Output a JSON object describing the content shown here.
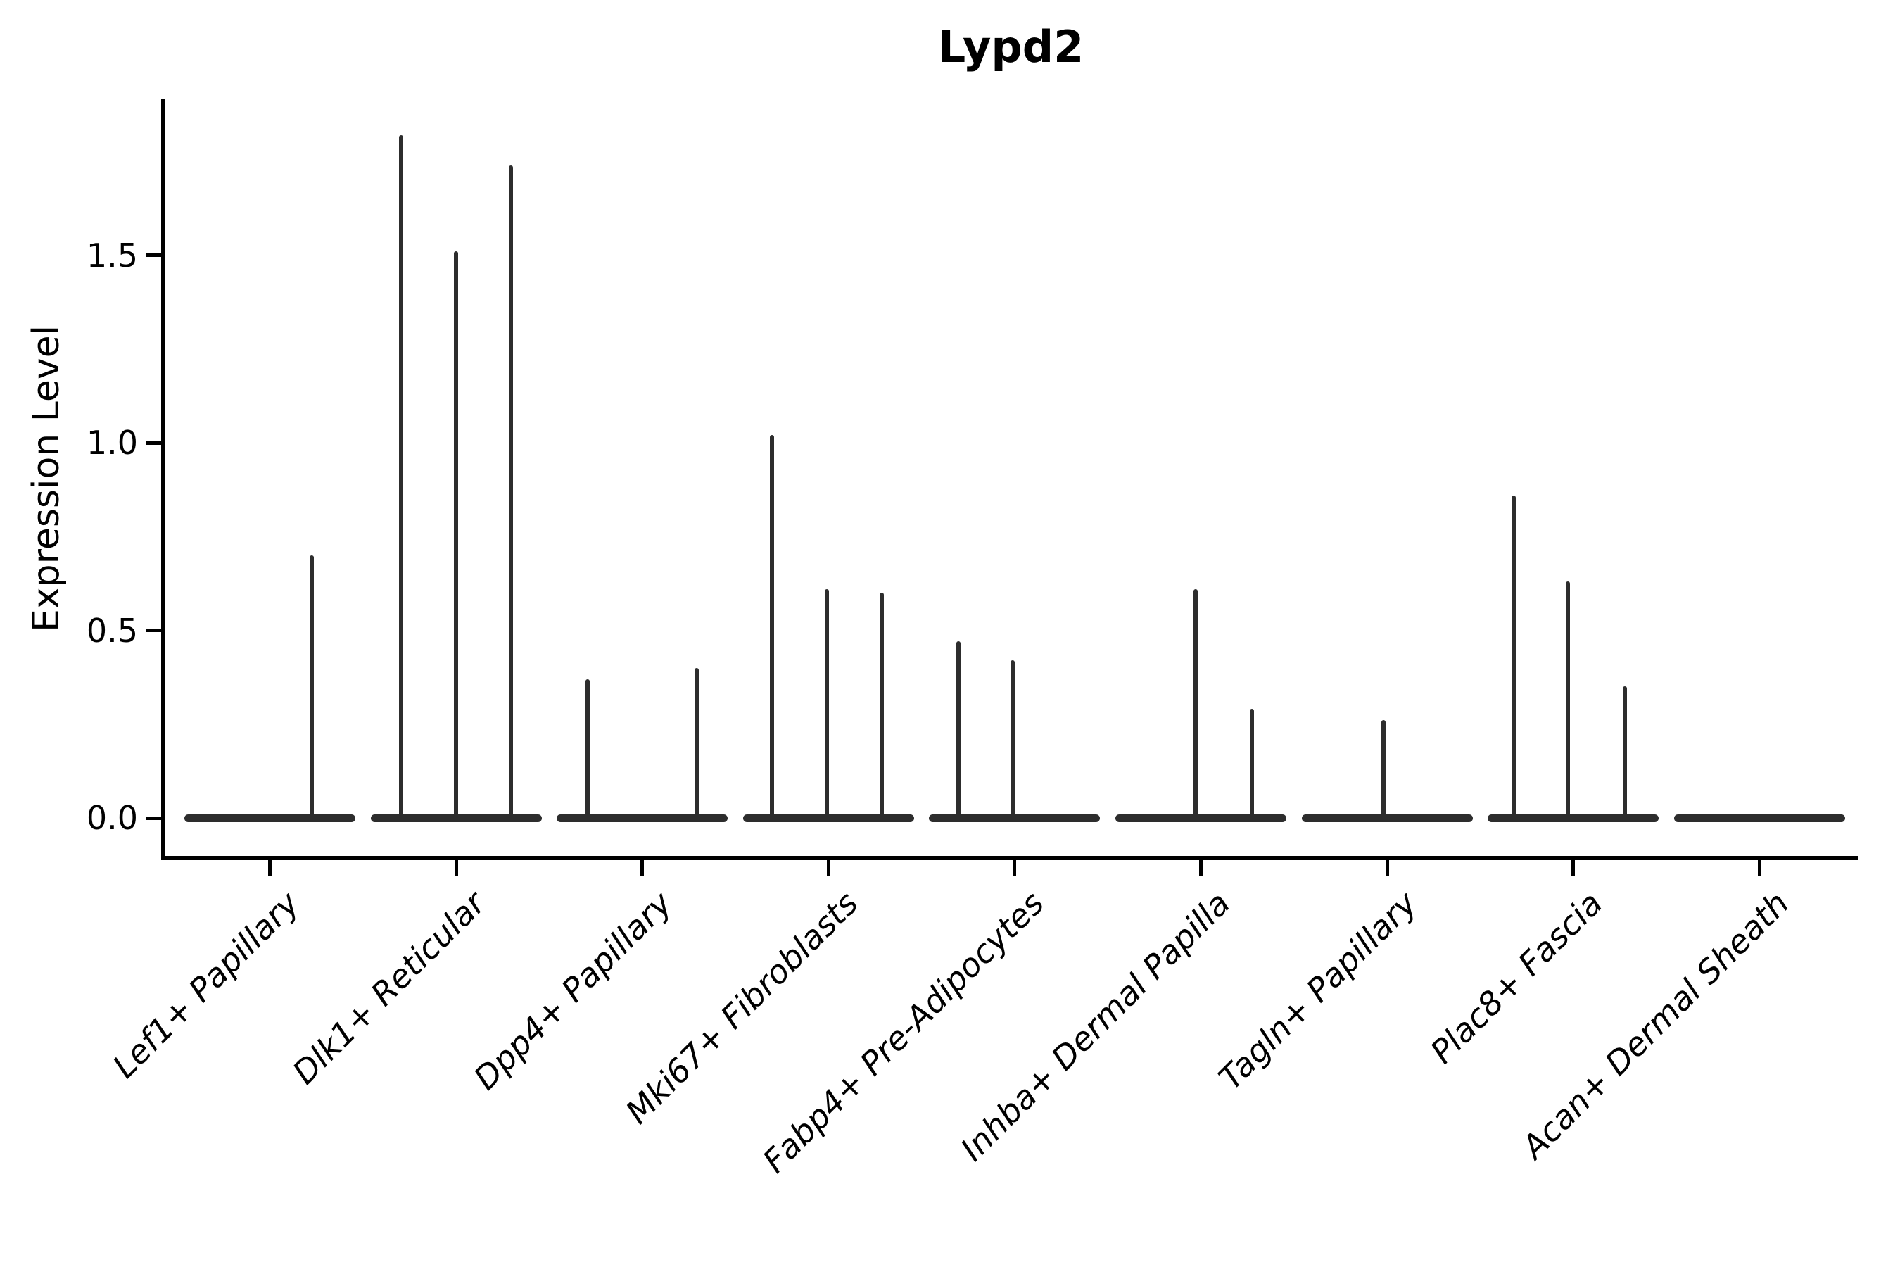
{
  "chart_data": {
    "type": "violin",
    "title": "Lypd2",
    "xlabel": "",
    "ylabel": "Expression Level",
    "ylim": [
      -0.1,
      1.92
    ],
    "grid": false,
    "legend": "none",
    "yticks": [
      {
        "label": "0.0",
        "value": 0.0
      },
      {
        "label": "0.5",
        "value": 0.5
      },
      {
        "label": "1.0",
        "value": 1.0
      },
      {
        "label": "1.5",
        "value": 1.5
      }
    ],
    "categories": [
      "Lef1+ Papillary",
      "Dlk1+ Reticular",
      "Dpp4+ Papillary",
      "Mki67+ Fibroblasts",
      "Fabp4+ Pre-Adipocytes",
      "Inhba+ Dermal Papilla",
      "Tagln+ Papillary",
      "Plac8+ Fascia",
      "Acan+ Dermal Sheath"
    ],
    "violins": [
      {
        "name": "Lef1+ Papillary",
        "baseline_value": 0.0,
        "spikes": [
          {
            "pos": 0.745,
            "value": 0.7
          }
        ]
      },
      {
        "name": "Dlk1+ Reticular",
        "baseline_value": 0.0,
        "spikes": [
          {
            "pos": 0.18,
            "value": 1.82
          },
          {
            "pos": 0.5,
            "value": 1.51
          },
          {
            "pos": 0.82,
            "value": 1.74
          }
        ]
      },
      {
        "name": "Dpp4+ Papillary",
        "baseline_value": 0.0,
        "spikes": [
          {
            "pos": 0.18,
            "value": 0.37
          },
          {
            "pos": 0.82,
            "value": 0.4
          }
        ]
      },
      {
        "name": "Mki67+ Fibroblasts",
        "baseline_value": 0.0,
        "spikes": [
          {
            "pos": 0.17,
            "value": 1.02
          },
          {
            "pos": 0.49,
            "value": 0.61
          },
          {
            "pos": 0.81,
            "value": 0.6
          }
        ]
      },
      {
        "name": "Fabp4+ Pre-Adipocytes",
        "baseline_value": 0.0,
        "spikes": [
          {
            "pos": 0.17,
            "value": 0.47
          },
          {
            "pos": 0.49,
            "value": 0.42
          }
        ]
      },
      {
        "name": "Inhba+ Dermal Papilla",
        "baseline_value": 0.0,
        "spikes": [
          {
            "pos": 0.47,
            "value": 0.61
          },
          {
            "pos": 0.8,
            "value": 0.29
          }
        ]
      },
      {
        "name": "Tagln+ Papillary",
        "baseline_value": 0.0,
        "spikes": [
          {
            "pos": 0.48,
            "value": 0.26
          }
        ]
      },
      {
        "name": "Plac8+ Fascia",
        "baseline_value": 0.0,
        "spikes": [
          {
            "pos": 0.15,
            "value": 0.86
          },
          {
            "pos": 0.47,
            "value": 0.63
          },
          {
            "pos": 0.8,
            "value": 0.35
          }
        ]
      },
      {
        "name": "Acan+ Dermal Sheath",
        "baseline_value": 0.0,
        "spikes": []
      }
    ],
    "style": {
      "violin_color": "#2d2d2d",
      "axis_color": "#000000",
      "background": "#ffffff",
      "xtick_label_style": "italic, rotated 45deg",
      "title_weight": "bold"
    }
  }
}
